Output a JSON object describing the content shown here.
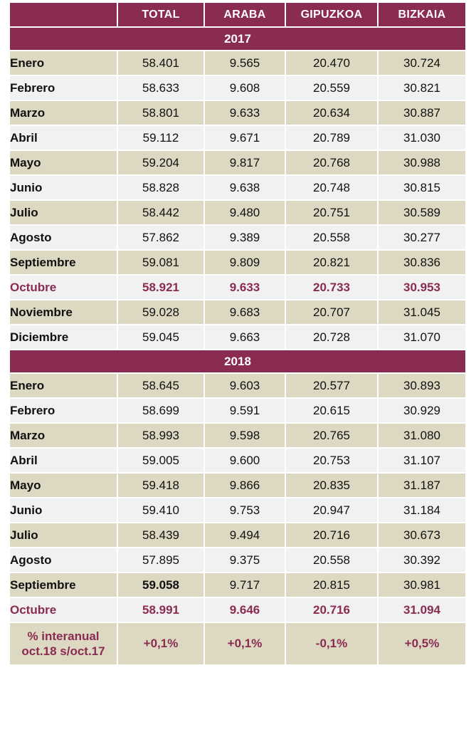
{
  "headers": [
    "TOTAL",
    "ARABA",
    "GIPUZKOA",
    "BIZKAIA"
  ],
  "y2017": {
    "label": "2017",
    "rows": [
      {
        "month": "Enero",
        "values": [
          "58.401",
          "9.565",
          "20.470",
          "30.724"
        ]
      },
      {
        "month": "Febrero",
        "values": [
          "58.633",
          "9.608",
          "20.559",
          "30.821"
        ]
      },
      {
        "month": "Marzo",
        "values": [
          "58.801",
          "9.633",
          "20.634",
          "30.887"
        ]
      },
      {
        "month": "Abril",
        "values": [
          "59.112",
          "9.671",
          "20.789",
          "31.030"
        ]
      },
      {
        "month": "Mayo",
        "values": [
          "59.204",
          "9.817",
          "20.768",
          "30.988"
        ]
      },
      {
        "month": "Junio",
        "values": [
          "58.828",
          "9.638",
          "20.748",
          "30.815"
        ]
      },
      {
        "month": "Julio",
        "values": [
          "58.442",
          "9.480",
          "20.751",
          "30.589"
        ]
      },
      {
        "month": "Agosto",
        "values": [
          "57.862",
          "9.389",
          "20.558",
          "30.277"
        ]
      },
      {
        "month": "Septiembre",
        "values": [
          "59.081",
          "9.809",
          "20.821",
          "30.836"
        ]
      },
      {
        "month": "Octubre",
        "values": [
          "58.921",
          "9.633",
          "20.733",
          "30.953"
        ]
      },
      {
        "month": "Noviembre",
        "values": [
          "59.028",
          "9.683",
          "20.707",
          "31.045"
        ]
      },
      {
        "month": "Diciembre",
        "values": [
          "59.045",
          "9.663",
          "20.728",
          "31.070"
        ]
      }
    ]
  },
  "y2018": {
    "label": "2018",
    "rows": [
      {
        "month": "Enero",
        "values": [
          "58.645",
          "9.603",
          "20.577",
          "30.893"
        ]
      },
      {
        "month": "Febrero",
        "values": [
          "58.699",
          "9.591",
          "20.615",
          "30.929"
        ]
      },
      {
        "month": "Marzo",
        "values": [
          "58.993",
          "9.598",
          "20.765",
          "31.080"
        ]
      },
      {
        "month": "Abril",
        "values": [
          "59.005",
          "9.600",
          "20.753",
          "31.107"
        ]
      },
      {
        "month": "Mayo",
        "values": [
          "59.418",
          "9.866",
          "20.835",
          "31.187"
        ]
      },
      {
        "month": "Junio",
        "values": [
          "59.410",
          "9.753",
          "20.947",
          "31.184"
        ]
      },
      {
        "month": "Julio",
        "values": [
          "58.439",
          "9.494",
          "20.716",
          "30.673"
        ]
      },
      {
        "month": "Agosto",
        "values": [
          "57.895",
          "9.375",
          "20.558",
          "30.392"
        ]
      },
      {
        "month": "Septiembre",
        "values": [
          "59.058",
          "9.717",
          "20.815",
          "30.981"
        ]
      },
      {
        "month": "Octubre",
        "values": [
          "58.991",
          "9.646",
          "20.716",
          "31.094"
        ]
      }
    ]
  },
  "footer": {
    "label_line1": "% interanual",
    "label_line2": "oct.18 s/oct.17",
    "values": [
      "+0,1%",
      "+0,1%",
      "-0,1%",
      "+0,5%"
    ]
  },
  "colors": {
    "accent": "#8a2b52",
    "row_beige": "#dcd8c1",
    "row_light": "#f1f1f1"
  }
}
